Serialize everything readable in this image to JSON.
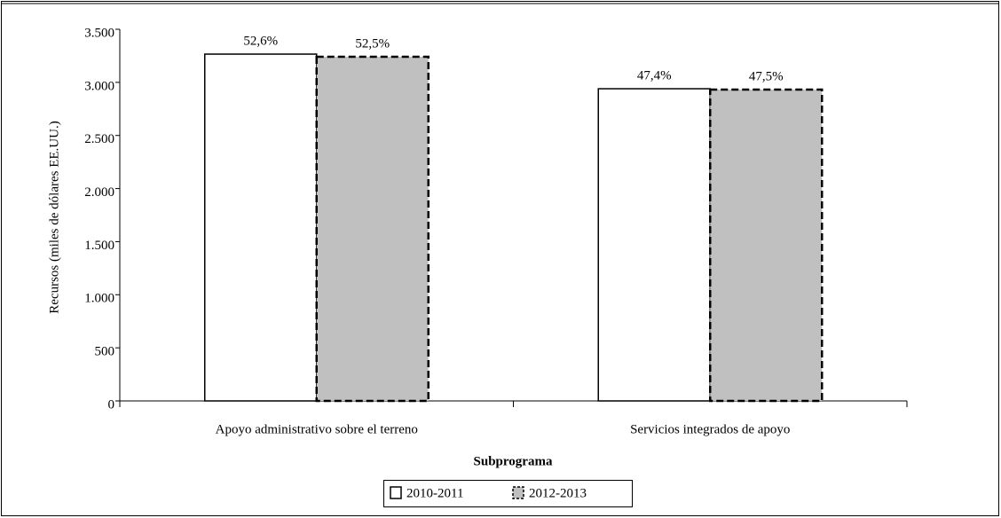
{
  "chart_data": {
    "type": "bar",
    "xlabel": "Subprograma",
    "ylabel": "Recursos (miles de dólares EE.UU.)",
    "categories": [
      "Apoyo administrativo sobre el terreno",
      "Servicios integrados de apoyo"
    ],
    "series": [
      {
        "name": "2010-2011",
        "color": "#ffffff",
        "edgecolor": "#000000",
        "linestyle": "solid",
        "values": [
          3266,
          2940
        ],
        "shares": [
          "52,6%",
          "47,4%"
        ]
      },
      {
        "name": "2012-2013",
        "color": "#c0c0c0",
        "edgecolor": "#000000",
        "linestyle": "dashed",
        "values": [
          3241,
          2932
        ],
        "shares": [
          "52,5%",
          "47,5%"
        ]
      }
    ],
    "ylim": [
      0,
      3500
    ],
    "yticks": [
      0,
      500,
      {
        "value": 1000,
        "label": "1.000"
      },
      {
        "value": 1500,
        "label": "1.500"
      },
      {
        "value": 2000,
        "label": "2.000"
      },
      {
        "value": 2500,
        "label": "2.500"
      },
      {
        "value": 3000,
        "label": "3.000"
      },
      {
        "value": 3500,
        "label": "3.500"
      }
    ],
    "legend": "bottom"
  }
}
